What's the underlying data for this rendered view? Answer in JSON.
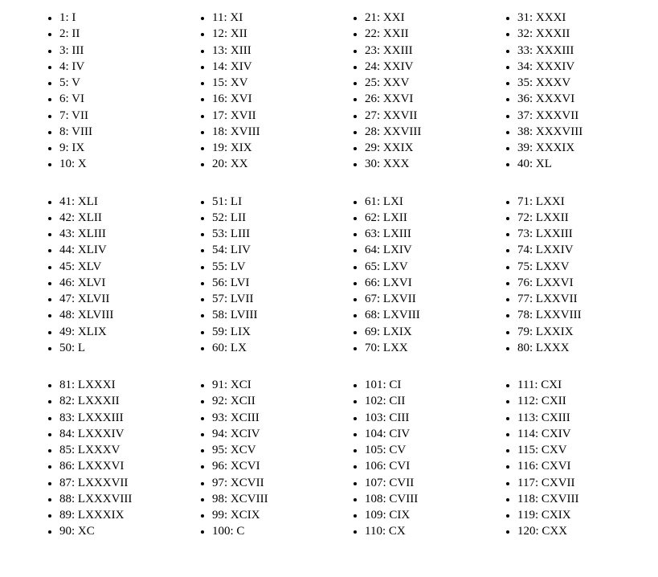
{
  "layout": {
    "rows": 3,
    "cols": 4,
    "items_per_cell": 10
  },
  "style": {
    "font_family": "Georgia serif",
    "font_size_pt": 11,
    "text_color": "#000000",
    "background_color": "#ffffff",
    "marker": "disc"
  },
  "cells": [
    [
      [
        "1: I",
        "2: II",
        "3: III",
        "4: IV",
        "5: V",
        "6: VI",
        "7: VII",
        "8: VIII",
        "9: IX",
        "10: X"
      ],
      [
        "11: XI",
        "12: XII",
        "13: XIII",
        "14: XIV",
        "15: XV",
        "16: XVI",
        "17: XVII",
        "18: XVIII",
        "19: XIX",
        "20: XX"
      ],
      [
        "21: XXI",
        "22: XXII",
        "23: XXIII",
        "24: XXIV",
        "25: XXV",
        "26: XXVI",
        "27: XXVII",
        "28: XXVIII",
        "29: XXIX",
        "30: XXX"
      ],
      [
        "31: XXXI",
        "32: XXXII",
        "33: XXXIII",
        "34: XXXIV",
        "35: XXXV",
        "36: XXXVI",
        "37: XXXVII",
        "38: XXXVIII",
        "39: XXXIX",
        "40: XL"
      ]
    ],
    [
      [
        "41: XLI",
        "42: XLII",
        "43: XLIII",
        "44: XLIV",
        "45: XLV",
        "46: XLVI",
        "47: XLVII",
        "48: XLVIII",
        "49: XLIX",
        "50: L"
      ],
      [
        "51: LI",
        "52: LII",
        "53: LIII",
        "54: LIV",
        "55: LV",
        "56: LVI",
        "57: LVII",
        "58: LVIII",
        "59: LIX",
        "60: LX"
      ],
      [
        "61: LXI",
        "62: LXII",
        "63: LXIII",
        "64: LXIV",
        "65: LXV",
        "66: LXVI",
        "67: LXVII",
        "68: LXVIII",
        "69: LXIX",
        "70: LXX"
      ],
      [
        "71: LXXI",
        "72: LXXII",
        "73: LXXIII",
        "74: LXXIV",
        "75: LXXV",
        "76: LXXVI",
        "77: LXXVII",
        "78: LXXVIII",
        "79: LXXIX",
        "80: LXXX"
      ]
    ],
    [
      [
        "81: LXXXI",
        "82: LXXXII",
        "83: LXXXIII",
        "84: LXXXIV",
        "85: LXXXV",
        "86: LXXXVI",
        "87: LXXXVII",
        "88: LXXXVIII",
        "89: LXXXIX",
        "90: XC"
      ],
      [
        "91: XCI",
        "92: XCII",
        "93: XCIII",
        "94: XCIV",
        "95: XCV",
        "96: XCVI",
        "97: XCVII",
        "98: XCVIII",
        "99: XCIX",
        "100: C"
      ],
      [
        "101: CI",
        "102: CII",
        "103: CIII",
        "104: CIV",
        "105: CV",
        "106: CVI",
        "107: CVII",
        "108: CVIII",
        "109: CIX",
        "110: CX"
      ],
      [
        "111: CXI",
        "112: CXII",
        "113: CXIII",
        "114: CXIV",
        "115: CXV",
        "116: CXVI",
        "117: CXVII",
        "118: CXVIII",
        "119: CXIX",
        "120: CXX"
      ]
    ]
  ]
}
